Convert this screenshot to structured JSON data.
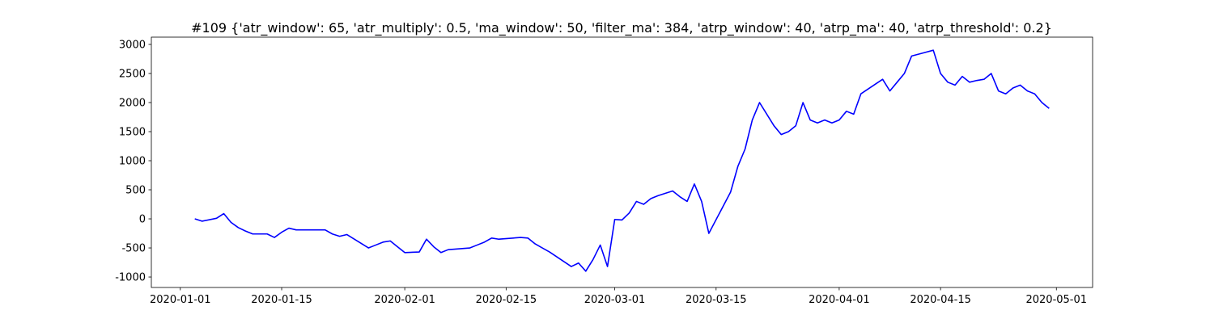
{
  "chart_data": {
    "type": "line",
    "title": "#109 {'atr_window': 65, 'atr_multiply': 0.5, 'ma_window': 50, 'filter_ma': 384, 'atrp_window': 40, 'atrp_ma': 40, 'atrp_threshold': 0.2}",
    "color": "#0000ff",
    "x": [
      "2020-01-03",
      "2020-01-04",
      "2020-01-06",
      "2020-01-07",
      "2020-01-08",
      "2020-01-09",
      "2020-01-10",
      "2020-01-11",
      "2020-01-13",
      "2020-01-14",
      "2020-01-15",
      "2020-01-16",
      "2020-01-17",
      "2020-01-21",
      "2020-01-22",
      "2020-01-23",
      "2020-01-24",
      "2020-01-27",
      "2020-01-28",
      "2020-01-29",
      "2020-01-30",
      "2020-01-31",
      "2020-02-01",
      "2020-02-03",
      "2020-02-04",
      "2020-02-05",
      "2020-02-06",
      "2020-02-07",
      "2020-02-10",
      "2020-02-11",
      "2020-02-12",
      "2020-02-13",
      "2020-02-14",
      "2020-02-17",
      "2020-02-18",
      "2020-02-19",
      "2020-02-20",
      "2020-02-21",
      "2020-02-24",
      "2020-02-25",
      "2020-02-26",
      "2020-02-27",
      "2020-02-28",
      "2020-02-29",
      "2020-03-01",
      "2020-03-02",
      "2020-03-03",
      "2020-03-04",
      "2020-03-05",
      "2020-03-06",
      "2020-03-07",
      "2020-03-09",
      "2020-03-10",
      "2020-03-11",
      "2020-03-12",
      "2020-03-13",
      "2020-03-14",
      "2020-03-17",
      "2020-03-18",
      "2020-03-19",
      "2020-03-20",
      "2020-03-21",
      "2020-03-23",
      "2020-03-24",
      "2020-03-25",
      "2020-03-26",
      "2020-03-27",
      "2020-03-28",
      "2020-03-29",
      "2020-03-30",
      "2020-03-31",
      "2020-04-01",
      "2020-04-02",
      "2020-04-03",
      "2020-04-04",
      "2020-04-07",
      "2020-04-08",
      "2020-04-09",
      "2020-04-10",
      "2020-04-11",
      "2020-04-14",
      "2020-04-15",
      "2020-04-16",
      "2020-04-17",
      "2020-04-18",
      "2020-04-19",
      "2020-04-20",
      "2020-04-21",
      "2020-04-22",
      "2020-04-23",
      "2020-04-24",
      "2020-04-25",
      "2020-04-26",
      "2020-04-27",
      "2020-04-28",
      "2020-04-29",
      "2020-04-30"
    ],
    "values": [
      0,
      -40,
      10,
      90,
      -60,
      -150,
      -210,
      -260,
      -260,
      -320,
      -230,
      -160,
      -190,
      -190,
      -260,
      -300,
      -270,
      -500,
      -450,
      -400,
      -380,
      -480,
      -580,
      -570,
      -350,
      -480,
      -580,
      -530,
      -500,
      -450,
      -400,
      -330,
      -350,
      -320,
      -330,
      -430,
      -500,
      -570,
      -820,
      -760,
      -900,
      -700,
      -450,
      -820,
      -10,
      -20,
      100,
      300,
      250,
      350,
      400,
      480,
      380,
      300,
      600,
      300,
      -250,
      460,
      900,
      1200,
      1700,
      2000,
      1600,
      1450,
      1500,
      1600,
      2000,
      1700,
      1650,
      1700,
      1650,
      1700,
      1850,
      1800,
      2150,
      2400,
      2200,
      2350,
      2500,
      2800,
      2900,
      2500,
      2350,
      2300,
      2450,
      2350,
      2380,
      2400,
      2500,
      2200,
      2150,
      2250,
      2300,
      2200,
      2150,
      2000,
      1900
    ],
    "xlim": [
      "2019-12-28",
      "2020-05-06"
    ],
    "xticks": [
      "2020-01-01",
      "2020-01-15",
      "2020-02-01",
      "2020-02-15",
      "2020-03-01",
      "2020-03-15",
      "2020-04-01",
      "2020-04-15",
      "2020-05-01"
    ],
    "ylim": [
      -1180,
      3125
    ],
    "yticks": [
      -1000,
      -500,
      0,
      500,
      1000,
      1500,
      2000,
      2500,
      3000
    ]
  }
}
